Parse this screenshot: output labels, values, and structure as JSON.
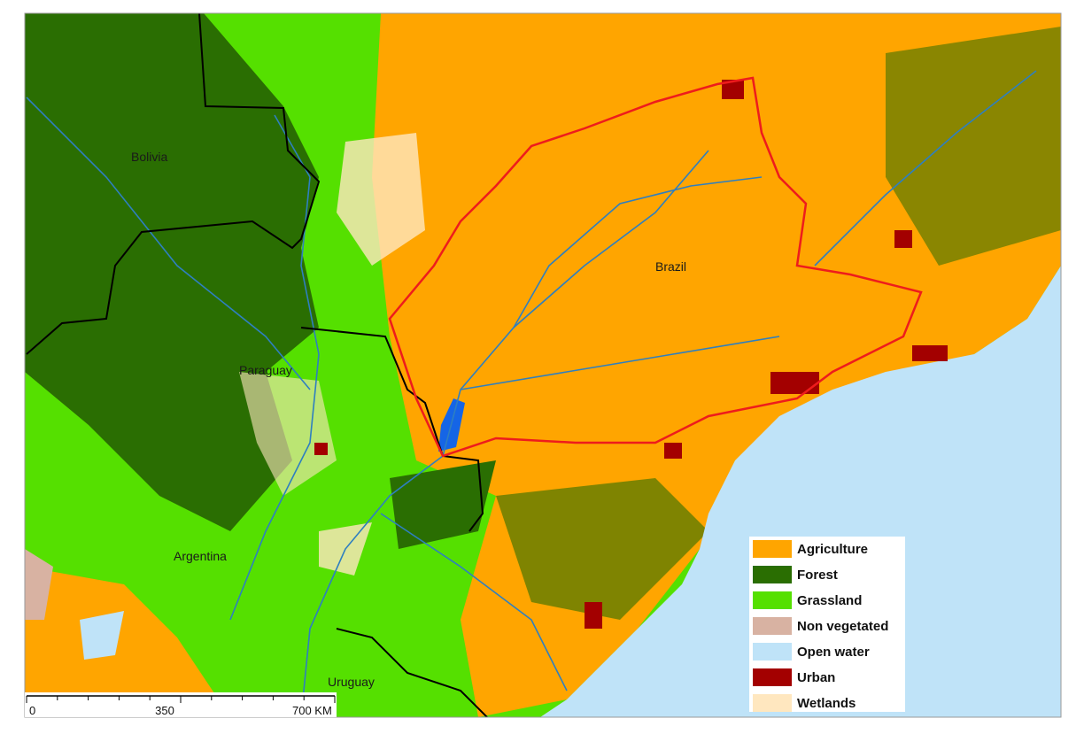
{
  "map": {
    "countries": [
      "Bolivia",
      "Brazil",
      "Paraguay",
      "Argentina",
      "Uruguay"
    ]
  },
  "legend": {
    "items": [
      {
        "name": "Agriculture",
        "color": "#ffa500"
      },
      {
        "name": "Forest",
        "color": "#2a6e02"
      },
      {
        "name": "Grassland",
        "color": "#55e000"
      },
      {
        "name": "Non vegetated",
        "color": "#d8b2a2"
      },
      {
        "name": "Open water",
        "color": "#bfe3f8"
      },
      {
        "name": "Urban",
        "color": "#a30000"
      },
      {
        "name": "Wetlands",
        "color": "#ffe7bf"
      }
    ]
  },
  "scale_bar": {
    "labels": [
      "0",
      "350",
      "700 KM"
    ]
  }
}
